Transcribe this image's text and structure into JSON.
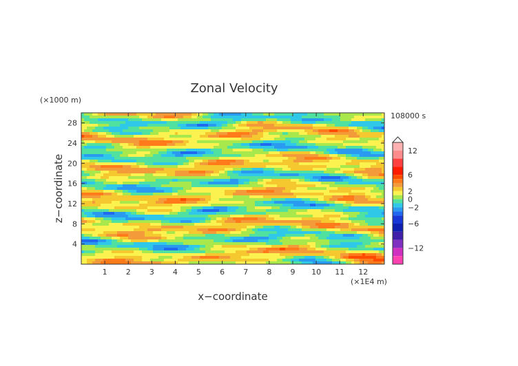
{
  "chart_data": {
    "type": "heatmap",
    "title": "Zonal Velocity",
    "xlabel": "x−coordinate",
    "ylabel": "z−coordinate",
    "x_unit": "(×1E4 m)",
    "y_unit": "(×1000 m)",
    "time_label": "108000 s",
    "xlim": [
      0,
      12.9
    ],
    "ylim": [
      0,
      30
    ],
    "x_ticks": [
      "1",
      "2",
      "3",
      "4",
      "5",
      "6",
      "7",
      "8",
      "9",
      "10",
      "11",
      "12"
    ],
    "y_ticks": [
      "4",
      "8",
      "12",
      "16",
      "20",
      "24",
      "28"
    ],
    "colorbar": {
      "tick_labels": [
        "12",
        "6",
        "2",
        "0",
        "−2",
        "−6",
        "−12"
      ],
      "levels": [
        {
          "lo": 12,
          "hi": 14,
          "color": "#ffb0b0"
        },
        {
          "lo": 10,
          "hi": 12,
          "color": "#ff8c8c"
        },
        {
          "lo": 8,
          "hi": 10,
          "color": "#ff4040"
        },
        {
          "lo": 6,
          "hi": 8,
          "color": "#ff1a00"
        },
        {
          "lo": 5,
          "hi": 6,
          "color": "#ff4a00"
        },
        {
          "lo": 4,
          "hi": 5,
          "color": "#ff7a1a"
        },
        {
          "lo": 3,
          "hi": 4,
          "color": "#f39a3a"
        },
        {
          "lo": 2,
          "hi": 3,
          "color": "#f6c830"
        },
        {
          "lo": 1,
          "hi": 2,
          "color": "#fbf250"
        },
        {
          "lo": 0,
          "hi": 1,
          "color": "#a8e84c"
        },
        {
          "lo": -1,
          "hi": 0,
          "color": "#50e0a0"
        },
        {
          "lo": -2,
          "hi": -1,
          "color": "#30c8e8"
        },
        {
          "lo": -3,
          "hi": -2,
          "color": "#2a9af0"
        },
        {
          "lo": -4,
          "hi": -3,
          "color": "#2068f0"
        },
        {
          "lo": -6,
          "hi": -4,
          "color": "#1838d8"
        },
        {
          "lo": -8,
          "hi": -6,
          "color": "#1020b0"
        },
        {
          "lo": -10,
          "hi": -8,
          "color": "#4020a8"
        },
        {
          "lo": -12,
          "hi": -10,
          "color": "#8030c0"
        },
        {
          "lo": -14,
          "hi": -12,
          "color": "#d030c0"
        },
        {
          "lo": -16,
          "hi": -14,
          "color": "#ff40b0"
        }
      ]
    },
    "field_value_range": [
      -5,
      5
    ]
  }
}
